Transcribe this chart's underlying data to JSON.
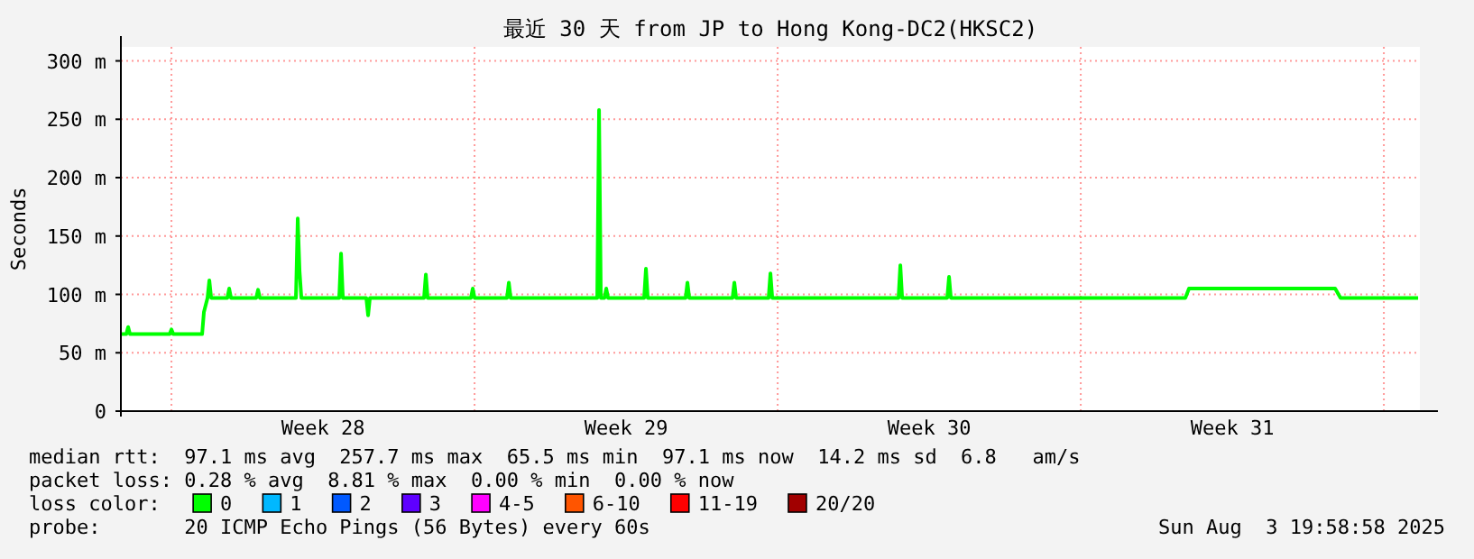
{
  "chart_data": {
    "type": "line",
    "title": "最近 30 天 from JP to Hong Kong-DC2(HKSC2)",
    "ylabel": "Seconds",
    "x": [
      "2025-07-04T20:00",
      "2025-07-04T23:00",
      "2025-07-05T00:00",
      "2025-07-05T01:00",
      "2025-07-05T23:00",
      "2025-07-06T00:00",
      "2025-07-06T01:00",
      "2025-07-06T17:00",
      "2025-07-06T18:00",
      "2025-07-06T20:00",
      "2025-07-06T21:00",
      "2025-07-06T22:00",
      "2025-07-07T07:00",
      "2025-07-07T08:00",
      "2025-07-07T09:00",
      "2025-07-07T23:00",
      "2025-07-08T00:00",
      "2025-07-08T01:00",
      "2025-07-08T21:00",
      "2025-07-08T22:00",
      "2025-07-08T23:00",
      "2025-07-09T00:00",
      "2025-07-09T21:00",
      "2025-07-09T22:00",
      "2025-07-09T23:00",
      "2025-07-10T12:00",
      "2025-07-10T13:00",
      "2025-07-10T14:00",
      "2025-07-11T20:00",
      "2025-07-11T21:00",
      "2025-07-11T22:00",
      "2025-07-12T22:00",
      "2025-07-12T23:00",
      "2025-07-13T00:00",
      "2025-07-13T18:00",
      "2025-07-13T19:00",
      "2025-07-13T20:00",
      "2025-07-15T20:00",
      "2025-07-15T21:00",
      "2025-07-15T22:00",
      "2025-07-16T00:00",
      "2025-07-16T01:00",
      "2025-07-16T02:00",
      "2025-07-16T22:00",
      "2025-07-16T23:00",
      "2025-07-17T00:00",
      "2025-07-17T21:00",
      "2025-07-17T22:00",
      "2025-07-17T23:00",
      "2025-07-18T23:00",
      "2025-07-19T00:00",
      "2025-07-19T01:00",
      "2025-07-19T19:00",
      "2025-07-19T20:00",
      "2025-07-19T21:00",
      "2025-07-22T19:00",
      "2025-07-22T20:00",
      "2025-07-22T21:00",
      "2025-07-23T22:00",
      "2025-07-23T23:00",
      "2025-07-24T00:00",
      "2025-07-29T10:00",
      "2025-07-29T12:00",
      "2025-08-01T21:00",
      "2025-08-02T00:00",
      "2025-08-03T19:00"
    ],
    "series": [
      {
        "name": "0",
        "color": "#00ff00",
        "values": [
          66,
          66,
          72,
          66,
          66,
          70,
          66,
          66,
          85,
          97,
          112,
          97,
          97,
          105,
          97,
          97,
          104,
          97,
          97,
          165,
          120,
          97,
          97,
          135,
          97,
          97,
          82,
          97,
          97,
          117,
          97,
          97,
          105,
          97,
          97,
          110,
          97,
          97,
          258,
          97,
          97,
          105,
          97,
          97,
          122,
          97,
          97,
          110,
          97,
          97,
          110,
          97,
          97,
          118,
          97,
          97,
          125,
          97,
          97,
          115,
          97,
          97,
          105,
          105,
          97,
          97
        ]
      },
      {
        "name": "1",
        "color": "#00b8ff",
        "values": [
          null,
          null,
          null,
          null,
          null,
          null,
          null,
          null,
          null,
          null,
          null,
          null,
          null,
          null,
          null,
          null,
          null,
          null,
          null,
          null,
          null,
          null,
          null,
          null,
          null,
          null,
          null,
          null,
          null,
          null,
          null,
          null,
          null,
          null,
          null,
          null,
          null,
          null,
          null,
          null,
          null,
          null,
          null,
          null,
          null,
          null,
          null,
          null,
          null,
          null,
          null,
          null,
          null,
          null,
          null,
          null,
          null,
          null,
          null,
          null,
          null,
          null,
          null,
          null,
          null,
          null
        ]
      },
      {
        "name": "2",
        "color": "#0059ff",
        "values": [
          null,
          null,
          null,
          null,
          null,
          null,
          null,
          null,
          null,
          null,
          null,
          null,
          null,
          null,
          null,
          null,
          null,
          null,
          null,
          null,
          null,
          null,
          null,
          null,
          null,
          null,
          null,
          null,
          null,
          null,
          null,
          null,
          null,
          null,
          null,
          null,
          null,
          null,
          null,
          null,
          null,
          null,
          null,
          null,
          null,
          null,
          null,
          null,
          null,
          null,
          null,
          null,
          null,
          null,
          null,
          null,
          null,
          null,
          null,
          null,
          null,
          null,
          null,
          null,
          null,
          null
        ]
      },
      {
        "name": "3",
        "color": "#5e00ff",
        "values": [
          null,
          null,
          null,
          null,
          null,
          null,
          null,
          null,
          null,
          null,
          null,
          null,
          null,
          null,
          null,
          null,
          null,
          null,
          null,
          null,
          null,
          null,
          null,
          null,
          null,
          null,
          null,
          null,
          null,
          null,
          null,
          null,
          null,
          null,
          null,
          null,
          null,
          null,
          null,
          null,
          null,
          null,
          null,
          null,
          null,
          null,
          null,
          null,
          null,
          null,
          null,
          null,
          null,
          null,
          null,
          null,
          null,
          null,
          null,
          null,
          null,
          null,
          null,
          null,
          null,
          null
        ]
      },
      {
        "name": "4-5",
        "color": "#ff00ff",
        "values": [
          null,
          null,
          null,
          null,
          null,
          null,
          null,
          null,
          null,
          null,
          null,
          null,
          null,
          null,
          null,
          null,
          null,
          null,
          null,
          null,
          null,
          null,
          null,
          null,
          null,
          null,
          null,
          null,
          null,
          null,
          null,
          null,
          null,
          null,
          null,
          null,
          null,
          null,
          null,
          null,
          null,
          null,
          null,
          null,
          null,
          null,
          null,
          null,
          null,
          null,
          null,
          null,
          null,
          null,
          null,
          null,
          null,
          null,
          null,
          null,
          null,
          null,
          null,
          null,
          null,
          null
        ]
      },
      {
        "name": "6-10",
        "color": "#ff5500",
        "values": [
          null,
          null,
          null,
          null,
          null,
          null,
          null,
          null,
          null,
          null,
          null,
          null,
          null,
          null,
          null,
          null,
          null,
          null,
          null,
          null,
          null,
          null,
          null,
          null,
          null,
          null,
          null,
          null,
          null,
          null,
          null,
          null,
          null,
          null,
          null,
          null,
          null,
          null,
          null,
          null,
          null,
          null,
          null,
          null,
          null,
          null,
          null,
          null,
          null,
          null,
          null,
          null,
          null,
          null,
          null,
          null,
          null,
          null,
          null,
          null,
          null,
          null,
          null,
          null,
          null,
          null
        ]
      },
      {
        "name": "11-19",
        "color": "#ff0000",
        "values": [
          null,
          null,
          null,
          null,
          null,
          null,
          null,
          null,
          null,
          null,
          null,
          null,
          null,
          null,
          null,
          null,
          null,
          null,
          null,
          null,
          null,
          null,
          null,
          null,
          null,
          null,
          null,
          null,
          null,
          null,
          null,
          null,
          null,
          null,
          null,
          null,
          null,
          null,
          null,
          null,
          null,
          null,
          null,
          null,
          null,
          null,
          null,
          null,
          null,
          null,
          null,
          null,
          null,
          null,
          null,
          null,
          null,
          null,
          null,
          null,
          null,
          null,
          null,
          null,
          null,
          null
        ]
      },
      {
        "name": "20/20",
        "color": "#a10000",
        "values": [
          null,
          null,
          null,
          null,
          null,
          null,
          null,
          null,
          null,
          null,
          null,
          null,
          null,
          null,
          null,
          null,
          null,
          null,
          null,
          null,
          null,
          null,
          null,
          null,
          null,
          null,
          null,
          null,
          null,
          null,
          null,
          null,
          null,
          null,
          null,
          null,
          null,
          null,
          null,
          null,
          null,
          null,
          null,
          null,
          null,
          null,
          null,
          null,
          null,
          null,
          null,
          null,
          null,
          null,
          null,
          null,
          null,
          null,
          null,
          null,
          null,
          null,
          null,
          null,
          null,
          null
        ]
      }
    ],
    "legend_title": "loss color:",
    "legend": "bottom",
    "xlim": [
      "2025-07-04T19:58",
      "2025-08-03T19:58"
    ],
    "xticks": [
      {
        "value": "2025-07-09T12:00",
        "label": "Week 28"
      },
      {
        "value": "2025-07-16T12:00",
        "label": "Week 29"
      },
      {
        "value": "2025-07-23T12:00",
        "label": "Week 30"
      },
      {
        "value": "2025-07-30T12:00",
        "label": "Week 31"
      }
    ],
    "ylim": [
      0,
      312
    ],
    "yticks": [
      0,
      {
        "value": 50,
        "label": "50 m"
      },
      {
        "value": 100,
        "label": "100 m"
      },
      {
        "value": 150,
        "label": "150 m"
      },
      {
        "value": 200,
        "label": "200 m"
      },
      {
        "value": 250,
        "label": "250 m"
      },
      {
        "value": 300,
        "label": "300 m"
      }
    ],
    "grid": "y",
    "ref_lines": [
      {
        "axis": "x",
        "value": "2025-07-06T00:00",
        "color": "#ff9999",
        "line_style": "dotted"
      },
      {
        "axis": "x",
        "value": "2025-07-13T00:00",
        "color": "#ff9999",
        "line_style": "dotted"
      },
      {
        "axis": "x",
        "value": "2025-07-20T00:00",
        "color": "#ff9999",
        "line_style": "dotted"
      },
      {
        "axis": "x",
        "value": "2025-07-27T00:00",
        "color": "#ff9999",
        "line_style": "dotted"
      },
      {
        "axis": "x",
        "value": "2025-08-03T00:00",
        "color": "#ff9999",
        "line_style": "dotted"
      }
    ],
    "annotations": [
      "median rtt:  97.1 ms avg  257.7 ms max  65.5 ms min  97.1 ms now  14.2 ms sd  6.8   am/s",
      "packet loss: 0.28 % avg  8.81 % max  0.00 % min  0.00 % now",
      "probe:       20 ICMP Echo Pings (56 Bytes) every 60s",
      "Sun Aug  3 19:58:58 2025"
    ]
  }
}
